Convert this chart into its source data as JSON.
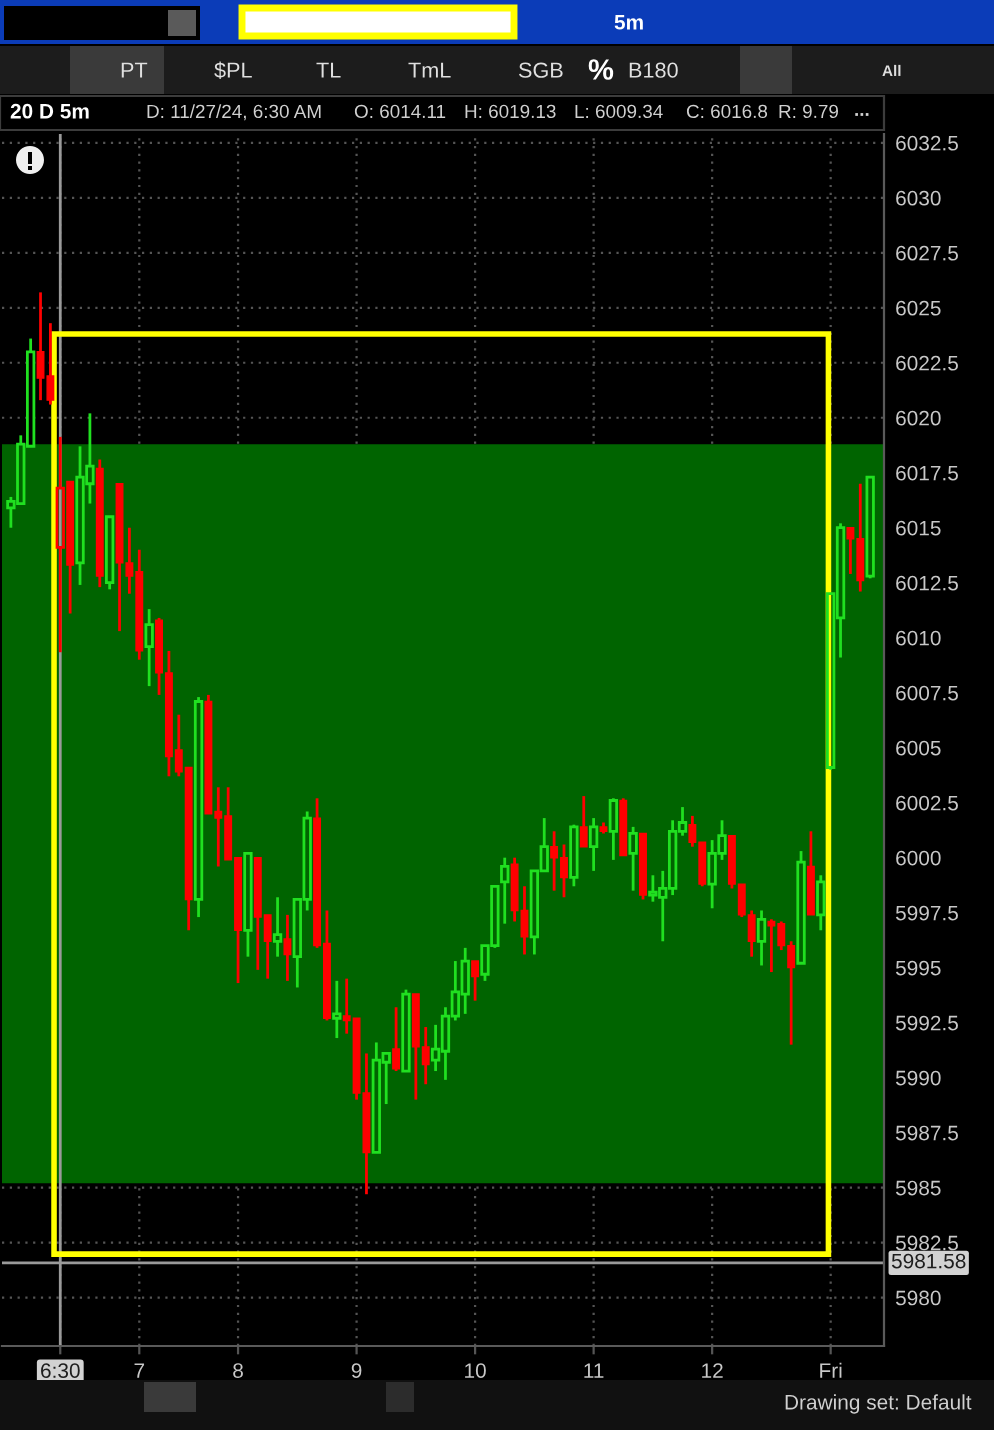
{
  "chart_data": {
    "type": "candlestick",
    "title": "20 D 5m",
    "annotations": [
      "D: 11/27/24, 6:30 AM",
      "O: 6014.11",
      "H: 6019.13",
      "L: 6009.34",
      "C: 6016.8",
      "R: 9.79",
      "...",
      "5m",
      "PT",
      "$PL",
      "TL",
      "TmL",
      "SGB",
      "%",
      "B180",
      "All",
      "Drawing set: Default"
    ],
    "categories": [
      null,
      null,
      null,
      null,
      null,
      "6:30",
      null,
      null,
      null,
      null,
      null,
      null,
      null,
      "7",
      null,
      null,
      null,
      null,
      null,
      null,
      null,
      null,
      null,
      "8",
      null,
      null,
      null,
      null,
      null,
      null,
      null,
      null,
      null,
      null,
      null,
      "9",
      null,
      null,
      null,
      null,
      null,
      null,
      null,
      null,
      null,
      null,
      null,
      "10",
      null,
      null,
      null,
      null,
      null,
      null,
      null,
      null,
      null,
      null,
      null,
      "11",
      null,
      null,
      null,
      null,
      null,
      null,
      null,
      null,
      null,
      null,
      null,
      "12",
      null,
      null,
      null,
      null,
      null,
      null,
      null,
      null,
      null,
      null,
      null,
      "Fri",
      null,
      null,
      null,
      null
    ],
    "ohlc": [
      [
        6015.9,
        6016.4,
        6015.0,
        6016.2
      ],
      [
        6016.1,
        6019.2,
        6016.1,
        6018.8
      ],
      [
        6018.7,
        6023.6,
        6018.7,
        6023.0
      ],
      [
        6023.0,
        6025.7,
        6020.8,
        6021.8
      ],
      [
        6021.9,
        6024.3,
        6020.6,
        6020.8
      ],
      [
        6014.11,
        6019.13,
        6009.34,
        6016.8
      ],
      [
        6017.1,
        6017.1,
        6011.1,
        6013.3
      ],
      [
        6013.4,
        6018.7,
        6012.4,
        6017.3
      ],
      [
        6017.0,
        6020.2,
        6016.1,
        6017.8
      ],
      [
        6017.7,
        6018.1,
        6012.3,
        6012.8
      ],
      [
        6012.5,
        6015.5,
        6012.2,
        6015.5
      ],
      [
        6017.0,
        6017.0,
        6010.3,
        6013.4
      ],
      [
        6013.4,
        6015.0,
        6012.0,
        6012.8
      ],
      [
        6013.0,
        6014.0,
        6009.0,
        6009.4
      ],
      [
        6009.6,
        6011.3,
        6007.8,
        6010.6
      ],
      [
        6010.8,
        6010.9,
        6007.4,
        6008.4
      ],
      [
        6008.4,
        6009.4,
        6003.7,
        6004.6
      ],
      [
        6004.9,
        6006.5,
        6003.7,
        6003.9
      ],
      [
        6004.1,
        6004.1,
        5996.7,
        5998.1
      ],
      [
        5998.1,
        6007.3,
        5997.3,
        6007.1
      ],
      [
        6007.1,
        6007.4,
        6002.0,
        6002.0
      ],
      [
        6002.1,
        6003.2,
        5999.6,
        6001.8
      ],
      [
        6001.9,
        6003.2,
        5999.9,
        5999.9
      ],
      [
        6000.0,
        6000.0,
        5994.3,
        5996.7
      ],
      [
        5996.7,
        6000.2,
        5995.5,
        6000.2
      ],
      [
        6000.0,
        6000.0,
        5994.9,
        5997.3
      ],
      [
        5997.4,
        5997.4,
        5994.5,
        5996.2
      ],
      [
        5996.2,
        5998.2,
        5995.5,
        5996.5
      ],
      [
        5996.3,
        5997.4,
        5994.4,
        5995.6
      ],
      [
        5995.5,
        5998.1,
        5994.1,
        5998.1
      ],
      [
        5998.1,
        6002.1,
        5997.6,
        6001.8
      ],
      [
        6001.8,
        6002.7,
        5995.9,
        5996.0
      ],
      [
        5996.1,
        5997.6,
        5992.6,
        5992.7
      ],
      [
        5992.7,
        5994.4,
        5991.8,
        5992.9
      ],
      [
        5992.8,
        5994.5,
        5992.0,
        5992.6
      ],
      [
        5992.7,
        5992.7,
        5989.0,
        5989.3
      ],
      [
        5989.3,
        5991.1,
        5984.7,
        5986.6
      ],
      [
        5986.6,
        5991.6,
        5986.6,
        5990.8
      ],
      [
        5990.7,
        5991.1,
        5988.8,
        5991.1
      ],
      [
        5991.3,
        5993.2,
        5990.3,
        5990.4
      ],
      [
        5990.3,
        5994.0,
        5990.3,
        5993.8
      ],
      [
        5993.8,
        5993.8,
        5989.0,
        5991.4
      ],
      [
        5991.4,
        5992.3,
        5989.7,
        5990.6
      ],
      [
        5990.8,
        5992.4,
        5990.3,
        5991.3
      ],
      [
        5991.2,
        5993.2,
        5989.9,
        5992.8
      ],
      [
        5992.8,
        5995.3,
        5992.6,
        5993.9
      ],
      [
        5993.8,
        5995.9,
        5992.9,
        5995.3
      ],
      [
        5995.3,
        5995.3,
        5993.5,
        5994.6
      ],
      [
        5994.7,
        5996.0,
        5994.4,
        5996.0
      ],
      [
        5996.0,
        5998.7,
        5995.9,
        5998.7
      ],
      [
        5998.9,
        6000.0,
        5997.0,
        5999.6
      ],
      [
        5999.7,
        6000.0,
        5997.1,
        5997.6
      ],
      [
        5997.6,
        5998.7,
        5995.6,
        5996.4
      ],
      [
        5996.4,
        5999.4,
        5995.6,
        5999.4
      ],
      [
        5999.4,
        6001.8,
        5999.4,
        6000.5
      ],
      [
        6000.5,
        6001.2,
        5998.5,
        6000.0
      ],
      [
        6000.0,
        6000.6,
        5998.2,
        5999.1
      ],
      [
        5999.1,
        6001.5,
        5998.7,
        6001.4
      ],
      [
        6001.4,
        6002.8,
        6000.5,
        6000.5
      ],
      [
        6000.5,
        6001.8,
        5999.4,
        6001.4
      ],
      [
        6001.4,
        6001.6,
        6001.1,
        6001.2
      ],
      [
        6001.2,
        6002.7,
        5999.9,
        6002.6
      ],
      [
        6002.6,
        6002.7,
        6000.1,
        6000.1
      ],
      [
        6000.2,
        6001.4,
        5998.5,
        6001.1
      ],
      [
        6001.1,
        6001.1,
        5998.1,
        5998.3
      ],
      [
        5998.3,
        5999.2,
        5998.0,
        5998.4
      ],
      [
        5998.2,
        5999.4,
        5996.2,
        5998.6
      ],
      [
        5998.6,
        6001.7,
        5998.3,
        6001.2
      ],
      [
        6001.2,
        6002.3,
        6001.0,
        6001.6
      ],
      [
        6001.5,
        6001.9,
        6000.5,
        6000.7
      ],
      [
        6000.7,
        6000.7,
        5998.7,
        5998.8
      ],
      [
        5998.8,
        6000.8,
        5997.7,
        6000.2
      ],
      [
        6000.2,
        6001.7,
        5999.9,
        6001.0
      ],
      [
        6001.0,
        6001.0,
        5998.6,
        5998.8
      ],
      [
        5998.8,
        5998.8,
        5997.3,
        5997.4
      ],
      [
        5997.4,
        5997.6,
        5995.5,
        5996.2
      ],
      [
        5996.2,
        5997.6,
        5995.1,
        5997.2
      ],
      [
        5997.1,
        5997.2,
        5994.8,
        5996.9
      ],
      [
        5997.0,
        5997.1,
        5995.8,
        5996.0
      ],
      [
        5996.0,
        5996.2,
        5991.5,
        5995.0
      ],
      [
        5995.2,
        6000.3,
        5995.2,
        5999.8
      ],
      [
        5999.6,
        6001.2,
        5997.4,
        5997.4
      ],
      [
        5997.4,
        5999.2,
        5996.7,
        5998.9
      ],
      [
        6004.1,
        6012.0,
        6004.0,
        6012.0
      ],
      [
        6010.9,
        6015.2,
        6009.1,
        6015.0
      ],
      [
        6015.0,
        6015.0,
        6012.9,
        6014.5
      ],
      [
        6014.5,
        6017.0,
        6012.1,
        6012.6
      ],
      [
        6012.8,
        6017.3,
        6012.7,
        6017.3
      ]
    ],
    "colors": [
      "#20e020",
      "#20e020",
      "#20e020",
      "#ff0000",
      "#ff0000",
      "#ff0000",
      "#ff0000",
      "#20e020",
      "#20e020",
      "#ff0000",
      "#20e020",
      "#ff0000",
      "#ff0000",
      "#ff0000",
      "#20e020",
      "#ff0000",
      "#ff0000",
      "#ff0000",
      "#ff0000",
      "#20e020",
      "#ff0000",
      "#ff0000",
      "#ff0000",
      "#ff0000",
      "#20e020",
      "#ff0000",
      "#ff0000",
      "#20e020",
      "#ff0000",
      "#20e020",
      "#20e020",
      "#ff0000",
      "#ff0000",
      "#20e020",
      "#ff0000",
      "#ff0000",
      "#ff0000",
      "#20e020",
      "#20e020",
      "#ff0000",
      "#20e020",
      "#ff0000",
      "#ff0000",
      "#20e020",
      "#20e020",
      "#20e020",
      "#20e020",
      "#ff0000",
      "#20e020",
      "#20e020",
      "#20e020",
      "#ff0000",
      "#ff0000",
      "#20e020",
      "#20e020",
      "#ff0000",
      "#ff0000",
      "#20e020",
      "#ff0000",
      "#20e020",
      "#ff0000",
      "#20e020",
      "#ff0000",
      "#20e020",
      "#ff0000",
      "#20e020",
      "#20e020",
      "#20e020",
      "#20e020",
      "#ff0000",
      "#ff0000",
      "#20e020",
      "#20e020",
      "#ff0000",
      "#ff0000",
      "#ff0000",
      "#20e020",
      "#ff0000",
      "#ff0000",
      "#ff0000",
      "#20e020",
      "#ff0000",
      "#20e020",
      "#20e020",
      "#20e020",
      "#ff0000",
      "#ff0000",
      "#20e020"
    ],
    "ylim": [
      5977.8,
      6032.9
    ],
    "yticks": [
      5980,
      5982.5,
      5985,
      5987.5,
      5990,
      5992.5,
      5995,
      5997.5,
      6000,
      6002.5,
      6005,
      6007.5,
      6010,
      6012.5,
      6015,
      6017.5,
      6020,
      6022.5,
      6025,
      6027.5,
      6030,
      6032.5
    ],
    "grid": true,
    "bands": [
      {
        "axis": "y",
        "from": 5985.2,
        "to": 6018.8,
        "color": "#006400"
      }
    ],
    "ref_lines": [
      {
        "axis": "x",
        "value": "6:30",
        "color": "#9a9a9a",
        "line_style": "solid"
      },
      {
        "axis": "y",
        "value": 5981.58,
        "label": "5981.58",
        "color": "#9a9a9a",
        "line_style": "solid"
      }
    ]
  }
}
